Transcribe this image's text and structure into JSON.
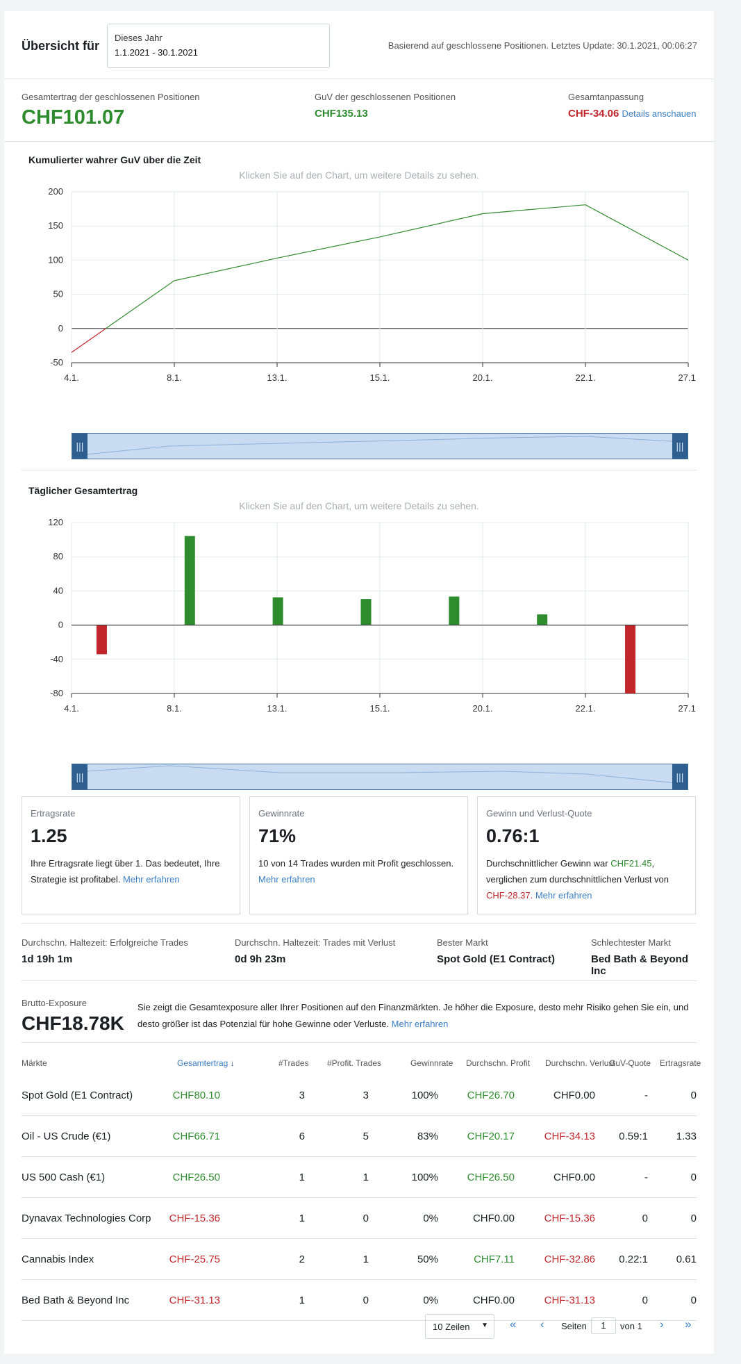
{
  "header": {
    "title": "Übersicht für",
    "period_name": "Dieses Jahr",
    "period_range": "1.1.2021 - 30.1.2021",
    "update_text": "Basierend auf geschlossene Positionen. Letztes Update: 30.1.2021, 00:06:27"
  },
  "summary": {
    "total_label": "Gesamtertrag der geschlossenen Positionen",
    "total_value": "CHF101.07",
    "pnl_label": "GuV der geschlossenen Positionen",
    "pnl_value": "CHF135.13",
    "adj_label": "Gesamtanpassung",
    "adj_value": "CHF-34.06",
    "adj_link": "Details anschauen"
  },
  "cumulative": {
    "title": "Kumulierter wahrer GuV über die Zeit",
    "subtitle": "Klicken Sie auf den Chart, um weitere Details zu sehen."
  },
  "daily": {
    "title": "Täglicher Gesamtertrag",
    "subtitle": "Klicken Sie auf den Chart, um weitere Details zu sehen."
  },
  "chart_data": [
    {
      "type": "line",
      "title": "Kumulierter wahrer GuV über die Zeit",
      "categories": [
        "4.1.",
        "8.1.",
        "13.1.",
        "15.1.",
        "20.1.",
        "22.1.",
        "27.1."
      ],
      "values": [
        -35,
        70,
        103,
        134,
        168,
        181,
        100
      ],
      "ylim": [
        -50,
        200
      ],
      "yticks": [
        200,
        150,
        100,
        50,
        0,
        -50
      ],
      "grid": true,
      "colors": {
        "positive": "#2e8b2e",
        "negative": "#c0262b"
      }
    },
    {
      "type": "bar",
      "title": "Täglicher Gesamtertrag",
      "categories": [
        "4.1.",
        "8.1.",
        "13.1.",
        "15.1.",
        "20.1.",
        "22.1.",
        "27.1."
      ],
      "values": [
        -34.06,
        104.3,
        32.5,
        30.5,
        33.4,
        12.5,
        -80
      ],
      "ylim": [
        -80,
        120
      ],
      "yticks": [
        120,
        80,
        40,
        0,
        -40,
        -80
      ],
      "grid": true,
      "colors": {
        "positive": "#2e8b2e",
        "negative": "#c0262b"
      }
    }
  ],
  "cards": {
    "ertrag": {
      "label": "Ertragsrate",
      "value": "1.25",
      "text": "Ihre Ertragsrate liegt über 1. Das bedeutet, Ihre Strategie ist profitabel.",
      "link": "Mehr erfahren"
    },
    "gewinn": {
      "label": "Gewinnrate",
      "value": "71%",
      "text": "10 von 14 Trades wurden mit Profit geschlossen.",
      "link": "Mehr erfahren"
    },
    "quote": {
      "label": "Gewinn und Verlust-Quote",
      "value": "0.76:1",
      "text_a": "Durchschnittlicher Gewinn war",
      "avg_win": "CHF21.45",
      "text_b": ", verglichen zum durchschnittlichen Verlust von",
      "avg_loss": "CHF-28.37.",
      "link": "Mehr erfahren"
    }
  },
  "stats": {
    "hold_win_label": "Durchschn. Haltezeit: Erfolgreiche Trades",
    "hold_win_value": "1d 19h 1m",
    "hold_loss_label": "Durchschn. Haltezeit: Trades mit Verlust",
    "hold_loss_value": "0d 9h 23m",
    "best_label": "Bester Markt",
    "best_value": "Spot Gold (E1 Contract)",
    "worst_label": "Schlechtester Markt",
    "worst_value": "Bed Bath & Beyond Inc"
  },
  "exposure": {
    "label": "Brutto-Exposure",
    "value": "CHF18.78K",
    "text": "Sie zeigt die Gesamtexposure aller Ihrer Positionen auf den Finanzmärkten. Je höher die Exposure, desto mehr Risiko gehen Sie ein, und desto größer ist das Potenzial für hohe Gewinne oder Verluste.",
    "link": "Mehr erfahren"
  },
  "table": {
    "headers": {
      "market": "Märkte",
      "total": "Gesamtertrag",
      "trades": "#Trades",
      "profit_trades": "#Profit. Trades",
      "win_rate": "Gewinnrate",
      "avg_profit": "Durchschn. Profit",
      "avg_loss": "Durchschn. Verlust",
      "pnl_ratio": "GuV-Quote",
      "return_rate": "Ertragsrate"
    },
    "rows": [
      {
        "market": "Spot Gold (E1 Contract)",
        "total": "CHF80.10",
        "trades": "3",
        "profit_trades": "3",
        "win_rate": "100%",
        "avg_profit": "CHF26.70",
        "avg_loss": "CHF0.00",
        "pnl_ratio": "-",
        "return_rate": "0"
      },
      {
        "market": "Oil - US Crude (€1)",
        "total": "CHF66.71",
        "trades": "6",
        "profit_trades": "5",
        "win_rate": "83%",
        "avg_profit": "CHF20.17",
        "avg_loss": "CHF-34.13",
        "pnl_ratio": "0.59:1",
        "return_rate": "1.33"
      },
      {
        "market": "US 500 Cash (€1)",
        "total": "CHF26.50",
        "trades": "1",
        "profit_trades": "1",
        "win_rate": "100%",
        "avg_profit": "CHF26.50",
        "avg_loss": "CHF0.00",
        "pnl_ratio": "-",
        "return_rate": "0"
      },
      {
        "market": "Dynavax Technologies Corp",
        "total": "CHF-15.36",
        "trades": "1",
        "profit_trades": "0",
        "win_rate": "0%",
        "avg_profit": "CHF0.00",
        "avg_loss": "CHF-15.36",
        "pnl_ratio": "0",
        "return_rate": "0"
      },
      {
        "market": "Cannabis Index",
        "total": "CHF-25.75",
        "trades": "2",
        "profit_trades": "1",
        "win_rate": "50%",
        "avg_profit": "CHF7.11",
        "avg_loss": "CHF-32.86",
        "pnl_ratio": "0.22:1",
        "return_rate": "0.61"
      },
      {
        "market": "Bed Bath & Beyond Inc",
        "total": "CHF-31.13",
        "trades": "1",
        "profit_trades": "0",
        "win_rate": "0%",
        "avg_profit": "CHF0.00",
        "avg_loss": "CHF-31.13",
        "pnl_ratio": "0",
        "return_rate": "0"
      }
    ]
  },
  "pagination": {
    "rows_label": "10 Zeilen",
    "pages_label": "Seiten",
    "current_page": "1",
    "of_label": "von 1"
  }
}
